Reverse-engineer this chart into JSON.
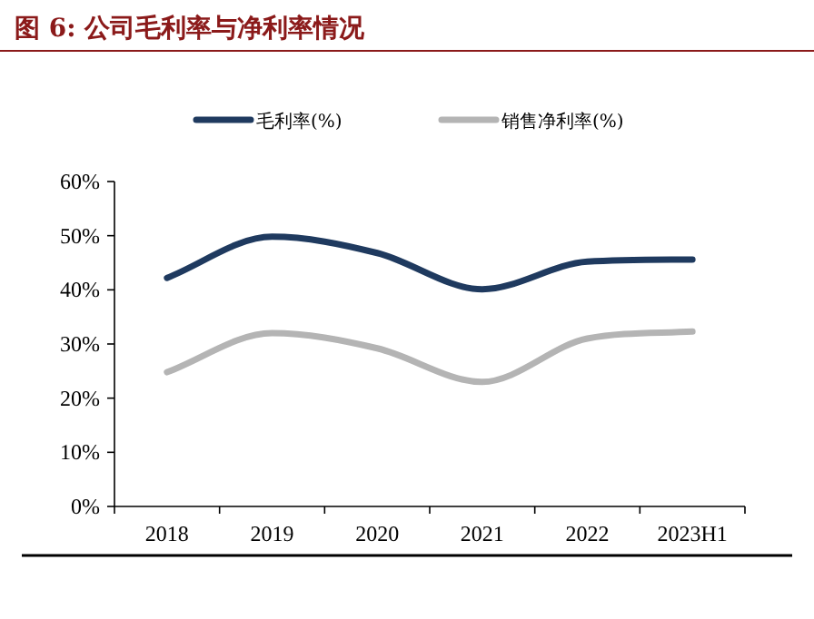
{
  "chart_data": {
    "type": "line",
    "title": "图 6:  公司毛利率与净利率情况",
    "categories": [
      "2018",
      "2019",
      "2020",
      "2021",
      "2022",
      "2023H1"
    ],
    "series": [
      {
        "name": "毛利率(%)",
        "color": "#1f3a5f",
        "values": [
          42.2,
          49.8,
          46.8,
          40.1,
          45.2,
          45.6
        ]
      },
      {
        "name": "销售净利率(%)",
        "color": "#b4b4b4",
        "values": [
          24.8,
          32.0,
          29.2,
          23.0,
          31.0,
          32.3
        ]
      }
    ],
    "ylim": [
      0,
      60
    ],
    "yticks": [
      {
        "value": 0,
        "label": "0%"
      },
      {
        "value": 10,
        "label": "10%"
      },
      {
        "value": 20,
        "label": "20%"
      },
      {
        "value": 30,
        "label": "30%"
      },
      {
        "value": 40,
        "label": "40%"
      },
      {
        "value": 50,
        "label": "50%"
      },
      {
        "value": 60,
        "label": "60%"
      }
    ],
    "grid": false,
    "legend": "top",
    "marker": "none",
    "line_style": "solid"
  }
}
